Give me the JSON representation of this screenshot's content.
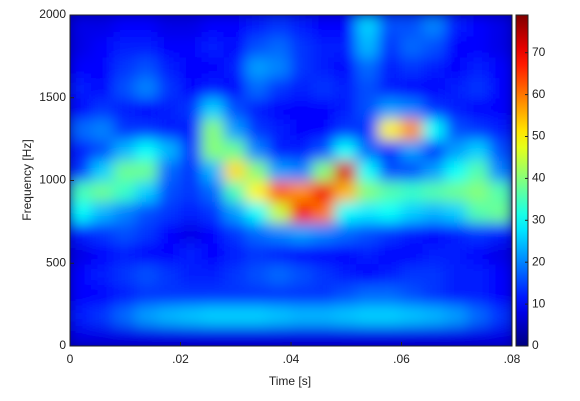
{
  "chart_data": {
    "type": "heatmap",
    "xlabel": "Time [s]",
    "ylabel": "Frequency [Hz]",
    "x": [
      0.002,
      0.006,
      0.01,
      0.014,
      0.018,
      0.022,
      0.026,
      0.03,
      0.034,
      0.038,
      0.042,
      0.046,
      0.05,
      0.054,
      0.058,
      0.062,
      0.066,
      0.07,
      0.074,
      0.078
    ],
    "y": [
      62.5,
      187.5,
      312.5,
      437.5,
      562.5,
      687.5,
      812.5,
      937.5,
      1062.5,
      1187.5,
      1312.5,
      1437.5,
      1562.5,
      1687.5,
      1812.5,
      1937.5
    ],
    "z": [
      [
        8,
        8,
        8,
        8,
        8,
        8,
        8,
        8,
        8,
        8,
        8,
        8,
        8,
        8,
        8,
        8,
        8,
        8,
        8,
        8
      ],
      [
        12,
        14,
        18,
        22,
        24,
        25,
        26,
        26,
        26,
        25,
        24,
        24,
        25,
        26,
        26,
        25,
        24,
        22,
        18,
        14
      ],
      [
        10,
        10,
        12,
        14,
        14,
        14,
        14,
        14,
        14,
        14,
        14,
        14,
        16,
        18,
        18,
        16,
        14,
        12,
        12,
        10
      ],
      [
        10,
        12,
        14,
        16,
        14,
        12,
        12,
        14,
        16,
        18,
        16,
        14,
        12,
        10,
        12,
        14,
        14,
        12,
        12,
        10
      ],
      [
        8,
        10,
        12,
        10,
        10,
        12,
        10,
        12,
        14,
        12,
        10,
        10,
        10,
        12,
        10,
        10,
        12,
        12,
        10,
        8
      ],
      [
        12,
        14,
        16,
        14,
        10,
        8,
        10,
        14,
        18,
        20,
        22,
        20,
        18,
        16,
        14,
        12,
        10,
        12,
        14,
        12
      ],
      [
        30,
        24,
        20,
        16,
        14,
        12,
        14,
        22,
        30,
        45,
        70,
        60,
        30,
        28,
        30,
        26,
        24,
        26,
        36,
        38
      ],
      [
        35,
        38,
        34,
        26,
        16,
        14,
        18,
        35,
        50,
        62,
        58,
        70,
        55,
        40,
        36,
        34,
        36,
        38,
        40,
        36
      ],
      [
        14,
        26,
        38,
        38,
        18,
        14,
        24,
        52,
        40,
        22,
        20,
        40,
        72,
        30,
        16,
        16,
        22,
        30,
        36,
        20
      ],
      [
        12,
        16,
        24,
        30,
        24,
        14,
        40,
        38,
        20,
        12,
        12,
        16,
        30,
        18,
        14,
        22,
        14,
        22,
        26,
        16
      ],
      [
        18,
        20,
        14,
        14,
        12,
        12,
        40,
        22,
        14,
        12,
        10,
        10,
        14,
        14,
        50,
        58,
        30,
        16,
        14,
        12
      ],
      [
        10,
        14,
        12,
        10,
        12,
        14,
        26,
        16,
        12,
        10,
        10,
        10,
        12,
        16,
        22,
        20,
        14,
        12,
        10,
        10
      ],
      [
        12,
        10,
        16,
        20,
        14,
        10,
        12,
        10,
        18,
        14,
        12,
        14,
        12,
        16,
        12,
        10,
        10,
        12,
        14,
        10
      ],
      [
        10,
        10,
        14,
        16,
        12,
        10,
        10,
        12,
        22,
        20,
        14,
        12,
        10,
        18,
        12,
        14,
        12,
        10,
        12,
        10
      ],
      [
        8,
        10,
        12,
        12,
        10,
        10,
        12,
        10,
        16,
        18,
        14,
        12,
        12,
        24,
        14,
        18,
        16,
        10,
        10,
        8
      ],
      [
        8,
        8,
        10,
        10,
        8,
        8,
        10,
        10,
        12,
        14,
        12,
        10,
        10,
        26,
        16,
        16,
        20,
        12,
        10,
        8
      ]
    ],
    "xlim": [
      0,
      0.08
    ],
    "xticks": [
      0,
      {
        "value": 0.02,
        "label": ".02"
      },
      {
        "value": 0.04,
        "label": ".04"
      },
      {
        "value": 0.06,
        "label": ".06"
      },
      {
        "value": 0.08,
        "label": ".08"
      }
    ],
    "ylim": [
      0,
      2000
    ],
    "yticks": [
      0,
      500,
      1000,
      1500,
      2000
    ],
    "clim": [
      0,
      79
    ],
    "cticks": [
      0,
      10,
      20,
      30,
      40,
      50,
      60,
      70
    ],
    "colormap": "jet"
  }
}
